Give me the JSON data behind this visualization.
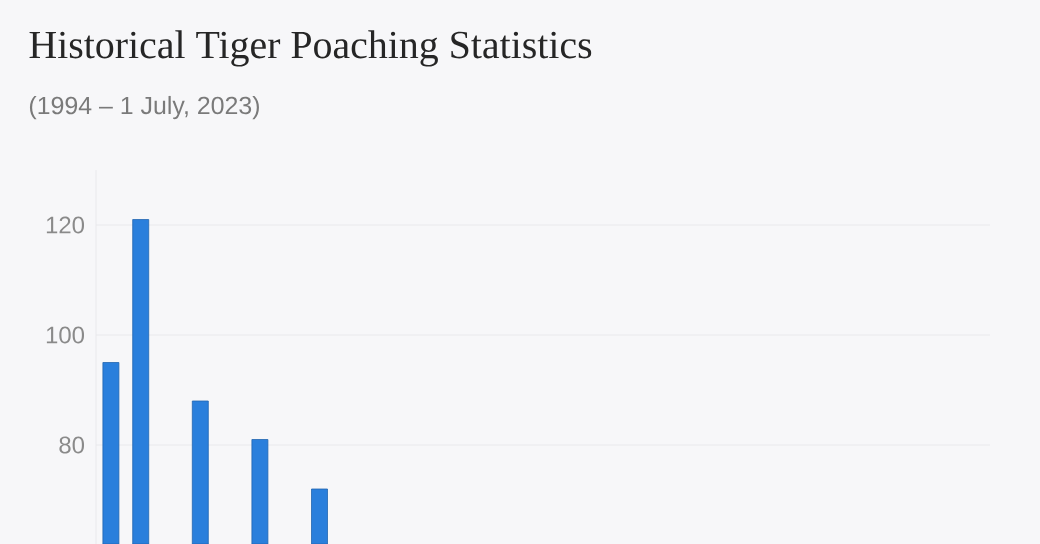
{
  "chart_data": {
    "type": "bar",
    "title": "Historical Tiger Poaching Statistics",
    "subtitle": "(1994 – 1 July, 2023)",
    "categories": [
      null,
      null,
      null,
      null,
      null,
      null,
      null,
      null,
      null,
      null,
      null,
      null,
      null,
      null,
      null,
      null,
      null,
      null,
      null,
      null,
      null,
      null,
      null,
      null,
      null,
      null,
      null,
      null,
      null,
      null
    ],
    "values": [
      95,
      121,
      null,
      88,
      null,
      81,
      null,
      72,
      null,
      null,
      null,
      null,
      null,
      null,
      null,
      null,
      null,
      null,
      null,
      null,
      null,
      null,
      null,
      null,
      null,
      null,
      null,
      null,
      null,
      null
    ],
    "color": "#2a7fdc",
    "ylim": [
      62,
      130
    ],
    "yticks": [
      80,
      100,
      120
    ],
    "grid": "y",
    "tick_labels": "y"
  }
}
